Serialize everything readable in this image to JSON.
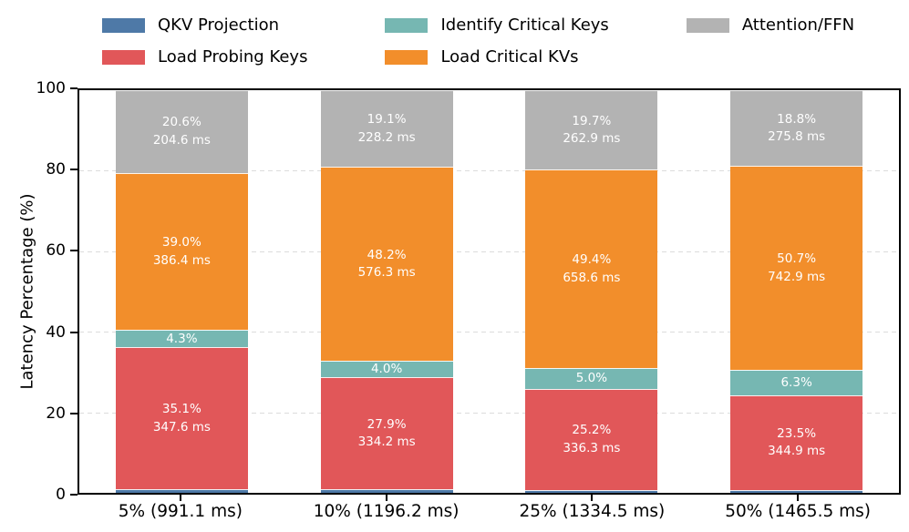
{
  "figure": {
    "background": "#ffffff",
    "axis_color": "#000000",
    "grid_color": "#dcdcdc",
    "bar_label_text_color": "#ffffff"
  },
  "legend": {
    "rows": 2,
    "columns": 3,
    "order": "column-major",
    "entries": [
      {
        "label": "QKV Projection",
        "color": "#4E79A7"
      },
      {
        "label": "Load Probing Keys",
        "color": "#E15759"
      },
      {
        "label": "Identify Critical Keys",
        "color": "#76B7B2"
      },
      {
        "label": "Load Critical KVs",
        "color": "#F28E2B"
      },
      {
        "label": "Attention/FFN",
        "color": "#B3B3B3"
      }
    ]
  },
  "chart_data": {
    "type": "bar",
    "stacked": true,
    "title": "",
    "xlabel": "",
    "ylabel": "Latency Percentage (%)",
    "ylim": [
      0,
      100
    ],
    "yticks": [
      0,
      20,
      40,
      60,
      80,
      100
    ],
    "gridlines": [
      20,
      40,
      60,
      80
    ],
    "grid_style": "dashed horizontal, light gray, behind bars",
    "legend_position": "top",
    "categories": [
      "5% (991.1 ms)",
      "10% (1196.2 ms)",
      "25% (1334.5 ms)",
      "50% (1465.5 ms)"
    ],
    "series": [
      {
        "name": "QKV Projection",
        "color": "#4E79A7",
        "values": [
          1.0,
          0.8,
          0.7,
          0.7
        ],
        "values_note": "unlabeled thin bottom slivers, estimated as remainder to 100%",
        "labels": [
          [],
          [],
          [],
          []
        ]
      },
      {
        "name": "Load Probing Keys",
        "color": "#E15759",
        "values": [
          35.1,
          27.9,
          25.2,
          23.5
        ],
        "labels": [
          [
            "35.1%",
            "347.6 ms"
          ],
          [
            "27.9%",
            "334.2 ms"
          ],
          [
            "25.2%",
            "336.3 ms"
          ],
          [
            "23.5%",
            "344.9 ms"
          ]
        ]
      },
      {
        "name": "Identify Critical Keys",
        "color": "#76B7B2",
        "values": [
          4.3,
          4.0,
          5.0,
          6.3
        ],
        "labels": [
          [
            "4.3%"
          ],
          [
            "4.0%"
          ],
          [
            "5.0%"
          ],
          [
            "6.3%"
          ]
        ]
      },
      {
        "name": "Load Critical KVs",
        "color": "#F28E2B",
        "values": [
          39.0,
          48.2,
          49.4,
          50.7
        ],
        "labels": [
          [
            "39.0%",
            "386.4 ms"
          ],
          [
            "48.2%",
            "576.3 ms"
          ],
          [
            "49.4%",
            "658.6 ms"
          ],
          [
            "50.7%",
            "742.9 ms"
          ]
        ]
      },
      {
        "name": "Attention/FFN",
        "color": "#B3B3B3",
        "values": [
          20.6,
          19.1,
          19.7,
          18.8
        ],
        "labels": [
          [
            "20.6%",
            "204.6 ms"
          ],
          [
            "19.1%",
            "228.2 ms"
          ],
          [
            "19.7%",
            "262.9 ms"
          ],
          [
            "18.8%",
            "275.8 ms"
          ]
        ]
      }
    ]
  }
}
